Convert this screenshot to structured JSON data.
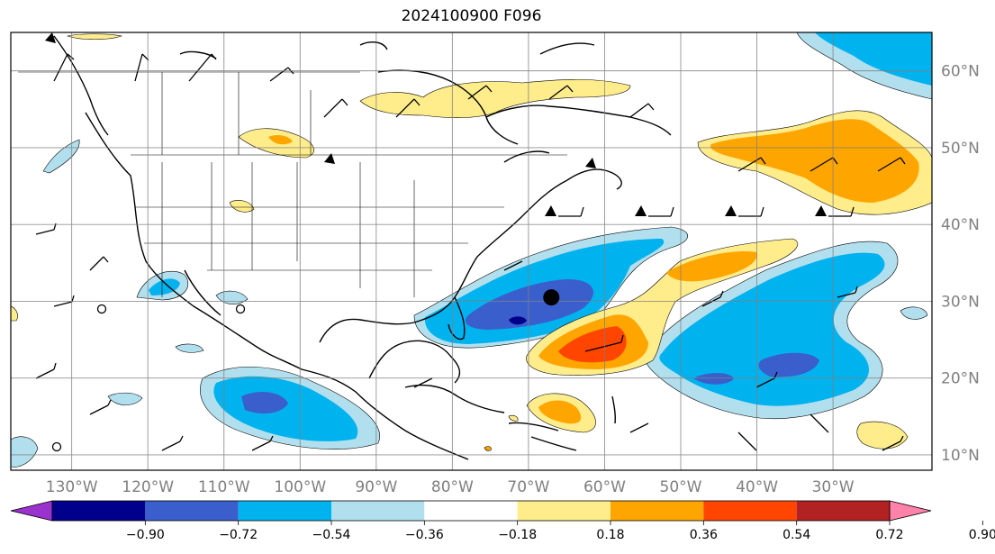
{
  "title": "2024100900 F096",
  "map": {
    "lon_range": [
      -138,
      -17
    ],
    "lat_range": [
      8,
      65
    ],
    "lon_ticks": [
      {
        "lon": -130,
        "label": "130°W"
      },
      {
        "lon": -120,
        "label": "120°W"
      },
      {
        "lon": -110,
        "label": "110°W"
      },
      {
        "lon": -100,
        "label": "100°W"
      },
      {
        "lon": -90,
        "label": "90°W"
      },
      {
        "lon": -80,
        "label": "80°W"
      },
      {
        "lon": -70,
        "label": "70°W"
      },
      {
        "lon": -60,
        "label": "60°W"
      },
      {
        "lon": -50,
        "label": "50°W"
      },
      {
        "lon": -40,
        "label": "40°W"
      },
      {
        "lon": -30,
        "label": "30°W"
      }
    ],
    "lat_ticks": [
      {
        "lat": 60,
        "label": "60°N"
      },
      {
        "lat": 50,
        "label": "50°N"
      },
      {
        "lat": 40,
        "label": "40°N"
      },
      {
        "lat": 30,
        "label": "30°N"
      },
      {
        "lat": 20,
        "label": "20°N"
      },
      {
        "lat": 10,
        "label": "10°N"
      }
    ],
    "grid": true,
    "marker": {
      "lon": -67,
      "lat": 30.5,
      "color": "#000000"
    }
  },
  "colorbar": {
    "colors": [
      "#9a32cd",
      "#00008b",
      "#3a5fcd",
      "#00b2ee",
      "#b2dfee",
      "#ffffff",
      "#ffec8b",
      "#ffa500",
      "#ff4500",
      "#b22222",
      "#ff82ab"
    ],
    "labels": [
      "−0.90",
      "−0.72",
      "−0.54",
      "−0.36",
      "−0.18",
      "0.18",
      "0.36",
      "0.54",
      "0.72",
      "0.90"
    ],
    "extend": "both"
  }
}
